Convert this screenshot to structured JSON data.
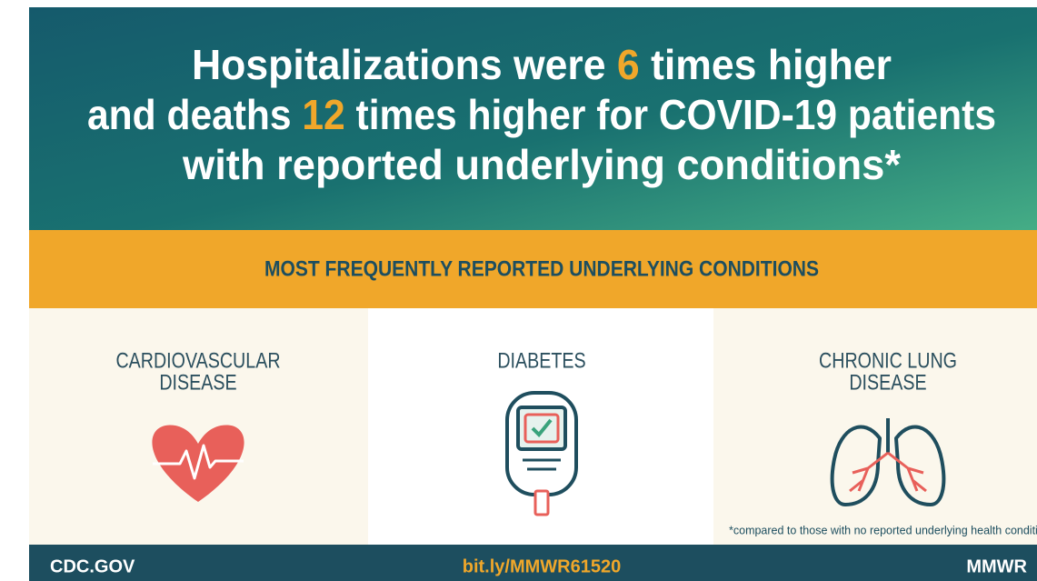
{
  "header": {
    "title_lines": [
      [
        "Hospitalizations were",
        "6",
        "times higher"
      ],
      [
        "and deaths",
        "12",
        "times higher for COVID-19 patients"
      ],
      [
        "with reported underlying conditions*"
      ]
    ]
  },
  "banner": {
    "title": "MOST FREQUENTLY REPORTED UNDERLYING CONDITIONS"
  },
  "conditions": [
    {
      "label_lines": [
        "CARDIOVASCULAR",
        "DISEASE"
      ]
    },
    {
      "label_lines": [
        "DIABETES"
      ]
    },
    {
      "label_lines": [
        "CHRONIC LUNG",
        "DISEASE"
      ]
    }
  ],
  "footnote": "*compared to those with no reported underlying health conditions",
  "footer": {
    "site": "CDC.GOV",
    "link": "bit.ly/MMWR61520",
    "brand": "MMWR"
  }
}
